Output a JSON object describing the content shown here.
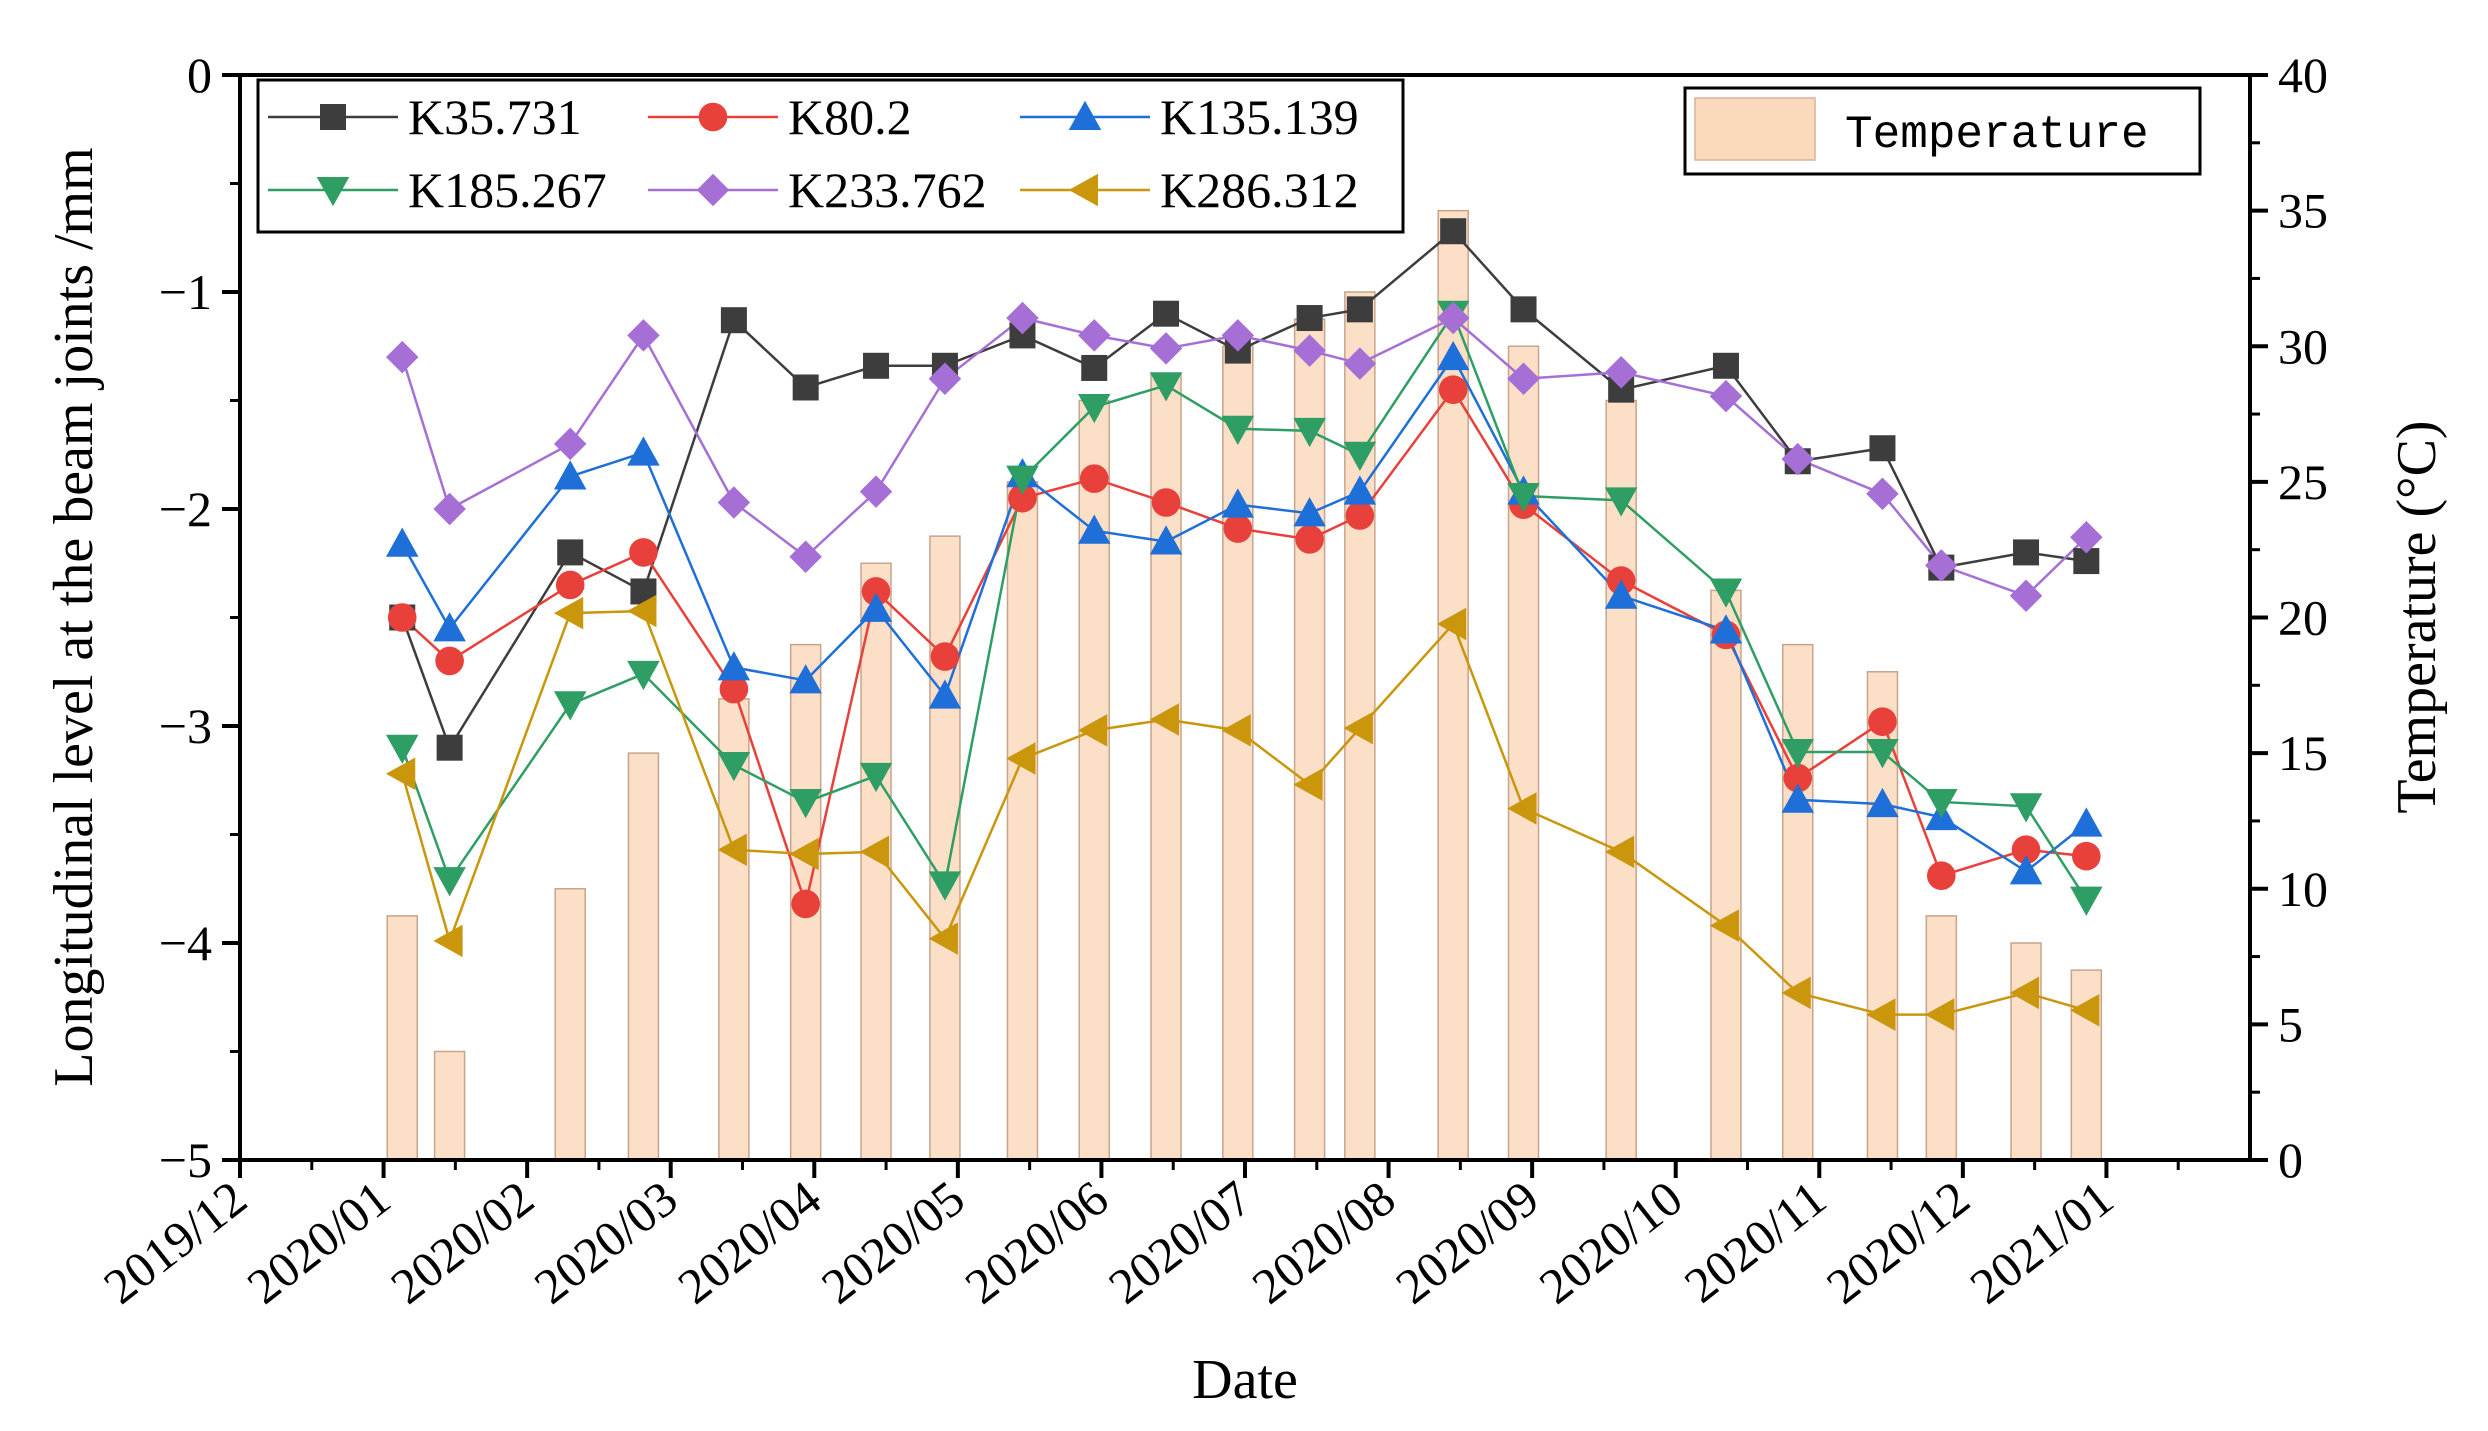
{
  "chart_data": {
    "type": "line",
    "xlabel": "Date",
    "ylabel": "Longitudinal level at the beam joints /mm",
    "y2label": "Temperature (°C)",
    "ylim": [
      -5,
      0
    ],
    "y2lim": [
      0,
      40
    ],
    "xlim": [
      0,
      14
    ],
    "xticks": [
      {
        "x": 0,
        "label": "2019/12"
      },
      {
        "x": 1,
        "label": "2020/01"
      },
      {
        "x": 2,
        "label": "2020/02"
      },
      {
        "x": 3,
        "label": "2020/03"
      },
      {
        "x": 4,
        "label": "2020/04"
      },
      {
        "x": 5,
        "label": "2020/05"
      },
      {
        "x": 6,
        "label": "2020/06"
      },
      {
        "x": 7,
        "label": "2020/07"
      },
      {
        "x": 8,
        "label": "2020/08"
      },
      {
        "x": 9,
        "label": "2020/09"
      },
      {
        "x": 10,
        "label": "2020/10"
      },
      {
        "x": 11,
        "label": "2020/11"
      },
      {
        "x": 12,
        "label": "2020/12"
      },
      {
        "x": 13,
        "label": "2021/01"
      }
    ],
    "yticks": [
      {
        "v": 0,
        "label": "0"
      },
      {
        "v": -1,
        "label": "−1"
      },
      {
        "v": -2,
        "label": "−2"
      },
      {
        "v": -3,
        "label": "−3"
      },
      {
        "v": -4,
        "label": "−4"
      },
      {
        "v": -5,
        "label": "−5"
      }
    ],
    "y2ticks": [
      {
        "v": 0,
        "label": "0"
      },
      {
        "v": 5,
        "label": "5"
      },
      {
        "v": 10,
        "label": "10"
      },
      {
        "v": 15,
        "label": "15"
      },
      {
        "v": 20,
        "label": "20"
      },
      {
        "v": 25,
        "label": "25"
      },
      {
        "v": 30,
        "label": "30"
      },
      {
        "v": 35,
        "label": "35"
      },
      {
        "v": 40,
        "label": "40"
      }
    ],
    "x": [
      1.13,
      1.46,
      2.3,
      2.81,
      3.44,
      3.94,
      4.43,
      4.91,
      5.45,
      5.95,
      6.45,
      6.95,
      7.45,
      7.8,
      8.45,
      8.94,
      9.62,
      10.35,
      10.85,
      11.44,
      11.85,
      12.44,
      12.86
    ],
    "temperature": {
      "name": "Temperature",
      "color": "#fbd9bd",
      "values": [
        9,
        4,
        10,
        15,
        17,
        19,
        22,
        23,
        25,
        28,
        29,
        30,
        31,
        32,
        35,
        30,
        28,
        21,
        19,
        18,
        9,
        8,
        7
      ]
    },
    "series": [
      {
        "name": "K35.731",
        "marker": "square",
        "color": "#3d3d3d",
        "values": [
          -2.5,
          -3.1,
          -2.2,
          -2.38,
          -1.13,
          -1.44,
          -1.34,
          -1.34,
          -1.2,
          -1.35,
          -1.1,
          -1.27,
          -1.12,
          -1.08,
          -0.72,
          -1.08,
          -1.45,
          -1.34,
          -1.78,
          -1.72,
          -2.27,
          -2.2,
          -2.24
        ]
      },
      {
        "name": "K80.2",
        "marker": "circle",
        "color": "#e8403a",
        "values": [
          -2.5,
          -2.7,
          -2.35,
          -2.2,
          -2.83,
          -3.82,
          -2.38,
          -2.68,
          -1.95,
          -1.86,
          -1.97,
          -2.09,
          -2.14,
          -2.03,
          -1.45,
          -1.98,
          -2.33,
          -2.58,
          -3.24,
          -2.98,
          -3.69,
          -3.57,
          -3.6
        ]
      },
      {
        "name": "K135.139",
        "marker": "triangle-up",
        "color": "#1f6fd8",
        "values": [
          -2.16,
          -2.55,
          -1.85,
          -1.74,
          -2.73,
          -2.79,
          -2.46,
          -2.86,
          -1.84,
          -2.1,
          -2.15,
          -1.98,
          -2.02,
          -1.92,
          -1.3,
          -1.92,
          -2.4,
          -2.56,
          -3.34,
          -3.36,
          -3.42,
          -3.67,
          -3.45
        ]
      },
      {
        "name": "K185.267",
        "marker": "triangle-down",
        "color": "#2f9e64",
        "values": [
          -3.1,
          -3.71,
          -2.9,
          -2.76,
          -3.18,
          -3.35,
          -3.23,
          -3.73,
          -1.86,
          -1.53,
          -1.43,
          -1.63,
          -1.64,
          -1.75,
          -1.1,
          -1.94,
          -1.96,
          -2.38,
          -3.12,
          -3.12,
          -3.35,
          -3.37,
          -3.8
        ]
      },
      {
        "name": "K233.762",
        "marker": "diamond",
        "color": "#a66fd6",
        "values": [
          -1.3,
          -2.0,
          -1.7,
          -1.2,
          -1.97,
          -2.22,
          -1.92,
          -1.4,
          -1.12,
          -1.2,
          -1.26,
          -1.2,
          -1.27,
          -1.33,
          -1.12,
          -1.4,
          -1.37,
          -1.48,
          -1.77,
          -1.93,
          -2.26,
          -2.4,
          -2.13
        ]
      },
      {
        "name": "K286.312",
        "marker": "triangle-left",
        "color": "#c9960c",
        "values": [
          -3.22,
          -3.99,
          -2.48,
          -2.47,
          -3.57,
          -3.59,
          -3.58,
          -3.98,
          -3.15,
          -3.02,
          -2.97,
          -3.02,
          -3.27,
          -3.01,
          -2.53,
          -3.38,
          -3.58,
          -3.92,
          -4.23,
          -4.33,
          -4.33,
          -4.23,
          -4.31
        ]
      }
    ],
    "legend": {
      "placement": "top-left",
      "temperature_placement": "top-right"
    }
  }
}
